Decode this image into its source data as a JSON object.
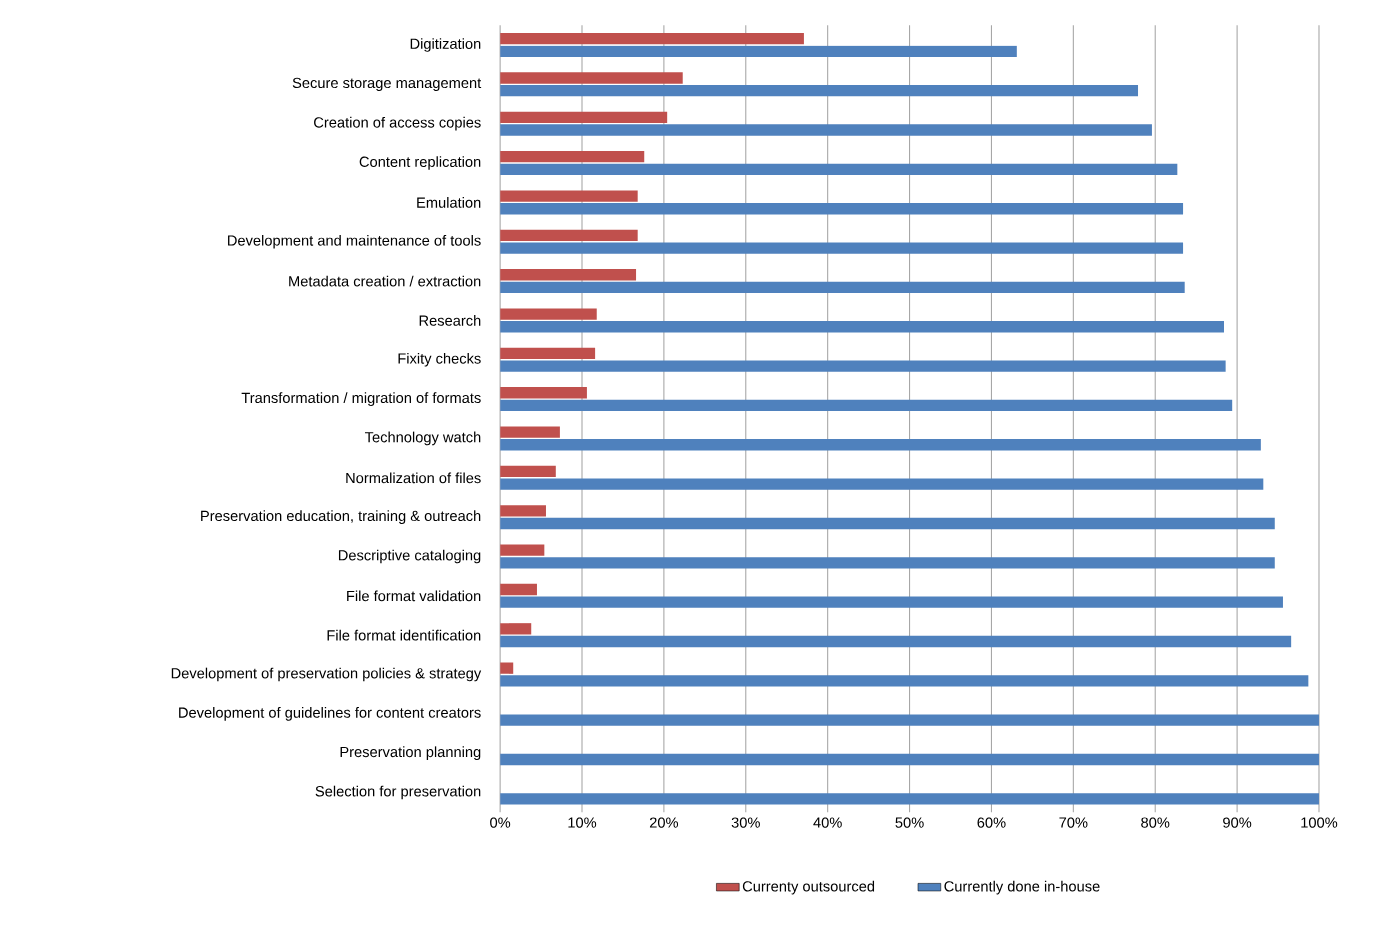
{
  "chart_data": {
    "type": "bar",
    "orientation": "horizontal",
    "categories": [
      "Digitization",
      "Secure storage management",
      "Creation of access copies",
      "Content replication",
      "Emulation",
      "Development and maintenance of tools",
      "Metadata creation / extraction",
      "Research",
      "Fixity checks",
      "Transformation / migration of formats",
      "Technology watch",
      "Normalization of files",
      "Preservation education,  training & outreach",
      "Descriptive cataloging",
      "File format validation",
      "File format identification",
      "Development of preservation  policies & strategy",
      "Development of guidelines for content  creators",
      "Preservation planning",
      "Selection for preservation"
    ],
    "series": [
      {
        "name": "Currenty  outsourced",
        "color": "#c0504d",
        "values": [
          37.1,
          22.3,
          20.4,
          17.6,
          16.8,
          16.8,
          16.6,
          11.8,
          11.6,
          10.6,
          7.3,
          6.8,
          5.6,
          5.4,
          4.5,
          3.8,
          1.6,
          0,
          0,
          0
        ]
      },
      {
        "name": "Currently  done  in-house",
        "color": "#4f81bd",
        "values": [
          63.1,
          77.9,
          79.6,
          82.7,
          83.4,
          83.4,
          83.6,
          88.4,
          88.6,
          89.4,
          92.9,
          93.2,
          94.6,
          94.6,
          95.6,
          96.6,
          98.7,
          100,
          100,
          100
        ]
      }
    ],
    "xlim": [
      0,
      100
    ],
    "xticks": [
      {
        "value": 0,
        "label": "0%"
      },
      {
        "value": 10,
        "label": "10%"
      },
      {
        "value": 20,
        "label": "20%"
      },
      {
        "value": 30,
        "label": "30%"
      },
      {
        "value": 40,
        "label": "40%"
      },
      {
        "value": 50,
        "label": "50%"
      },
      {
        "value": 60,
        "label": "60%"
      },
      {
        "value": 70,
        "label": "70%"
      },
      {
        "value": 80,
        "label": "80%"
      },
      {
        "value": 90,
        "label": "90%"
      },
      {
        "value": 100,
        "label": "100%"
      }
    ],
    "grid": "x",
    "legend": "bottom"
  }
}
